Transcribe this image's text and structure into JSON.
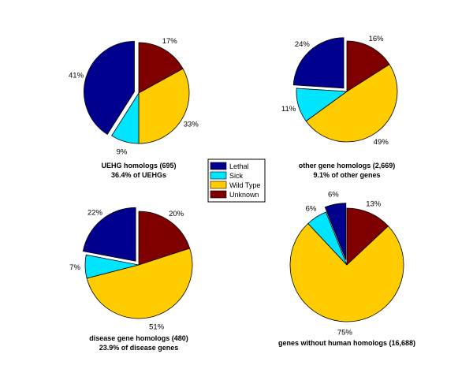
{
  "legend": {
    "entries": [
      "Lethal",
      "Sick",
      "Wild Type",
      "Unknown"
    ],
    "colors": [
      "#00008f",
      "#00e5ff",
      "#ffcc00",
      "#800000"
    ]
  },
  "chart_data": [
    {
      "type": "pie",
      "labels": [
        "Lethal",
        "Sick",
        "Wild Type",
        "Unknown"
      ],
      "values": [
        41,
        9,
        33,
        17
      ],
      "value_labels": [
        "41%",
        "9%",
        "33%",
        "17%"
      ],
      "exploded": "Lethal",
      "caption": [
        "UEHG homologs (695)",
        "36.4% of UEHGs"
      ]
    },
    {
      "type": "pie",
      "labels": [
        "Lethal",
        "Sick",
        "Wild Type",
        "Unknown"
      ],
      "values": [
        24,
        11,
        49,
        16
      ],
      "value_labels": [
        "24%",
        "11%",
        "49%",
        "16%"
      ],
      "exploded": "Lethal",
      "caption": [
        "other gene homologs (2,669)",
        "9.1% of other genes"
      ]
    },
    {
      "type": "pie",
      "labels": [
        "Lethal",
        "Sick",
        "Wild Type",
        "Unknown"
      ],
      "values": [
        22,
        7,
        51,
        20
      ],
      "value_labels": [
        "22%",
        "7%",
        "51%",
        "20%"
      ],
      "exploded": "Lethal",
      "caption": [
        "disease gene homologs (480)",
        "23.9% of disease genes"
      ]
    },
    {
      "type": "pie",
      "labels": [
        "Lethal",
        "Sick",
        "Wild Type",
        "Unknown"
      ],
      "values": [
        6,
        6,
        75,
        13
      ],
      "value_labels": [
        "6%",
        "6%",
        "75%",
        "13%"
      ],
      "exploded": "Lethal",
      "caption": [
        "genes without human homologs (16,688)"
      ]
    }
  ]
}
